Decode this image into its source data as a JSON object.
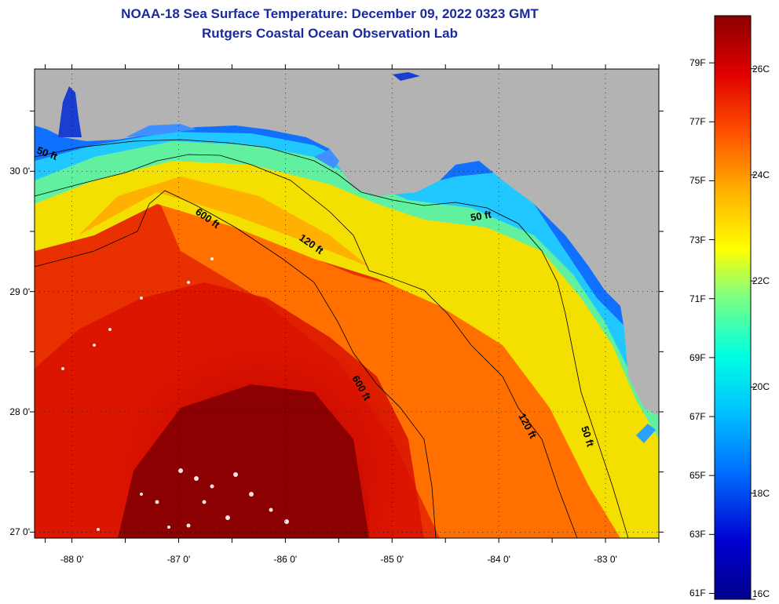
{
  "header": {
    "title": "NOAA-18 Sea Surface Temperature:  December 09, 2022 0323 GMT",
    "subtitle": "Rutgers Coastal Ocean Observation Lab"
  },
  "map": {
    "lon_range": [
      -88.35,
      -82.5
    ],
    "lat_range": [
      26.95,
      30.85
    ],
    "lat_labels": [
      {
        "value": 30,
        "text": "30 0'"
      },
      {
        "value": 29,
        "text": "29 0'"
      },
      {
        "value": 28,
        "text": "28 0'"
      },
      {
        "value": 27,
        "text": "27 0'"
      }
    ],
    "lon_labels": [
      {
        "value": -88,
        "text": "-88 0'"
      },
      {
        "value": -87,
        "text": "-87 0'"
      },
      {
        "value": -86,
        "text": "-86 0'"
      },
      {
        "value": -85,
        "text": "-85 0'"
      },
      {
        "value": -84,
        "text": "-84 0'"
      },
      {
        "value": -83,
        "text": "-83 0'"
      }
    ],
    "land_color": "#b3b3b3",
    "cloud_color": "#ffffff",
    "contour_labels": [
      "50 ft",
      "600 ft",
      "120 ft",
      "50 ft",
      "600 ft",
      "120 ft",
      "50 ft"
    ]
  },
  "colorbar": {
    "min_c": 16,
    "max_c": 27,
    "stops": [
      "#00008b",
      "#0000d0",
      "#0070ff",
      "#00c8ff",
      "#00ffe0",
      "#80ff80",
      "#ffff00",
      "#ffb000",
      "#ff5000",
      "#e00000",
      "#8b0000"
    ],
    "fahrenheit_labels": [
      {
        "value": 61,
        "text": "61F"
      },
      {
        "value": 63,
        "text": "63F"
      },
      {
        "value": 65,
        "text": "65F"
      },
      {
        "value": 67,
        "text": "67F"
      },
      {
        "value": 69,
        "text": "69F"
      },
      {
        "value": 71,
        "text": "71F"
      },
      {
        "value": 73,
        "text": "73F"
      },
      {
        "value": 75,
        "text": "75F"
      },
      {
        "value": 77,
        "text": "77F"
      },
      {
        "value": 79,
        "text": "79F"
      }
    ],
    "celsius_labels": [
      {
        "value": 16,
        "text": "16C"
      },
      {
        "value": 18,
        "text": "18C"
      },
      {
        "value": 20,
        "text": "20C"
      },
      {
        "value": 22,
        "text": "22C"
      },
      {
        "value": 24,
        "text": "24C"
      },
      {
        "value": 26,
        "text": "26C"
      }
    ]
  }
}
